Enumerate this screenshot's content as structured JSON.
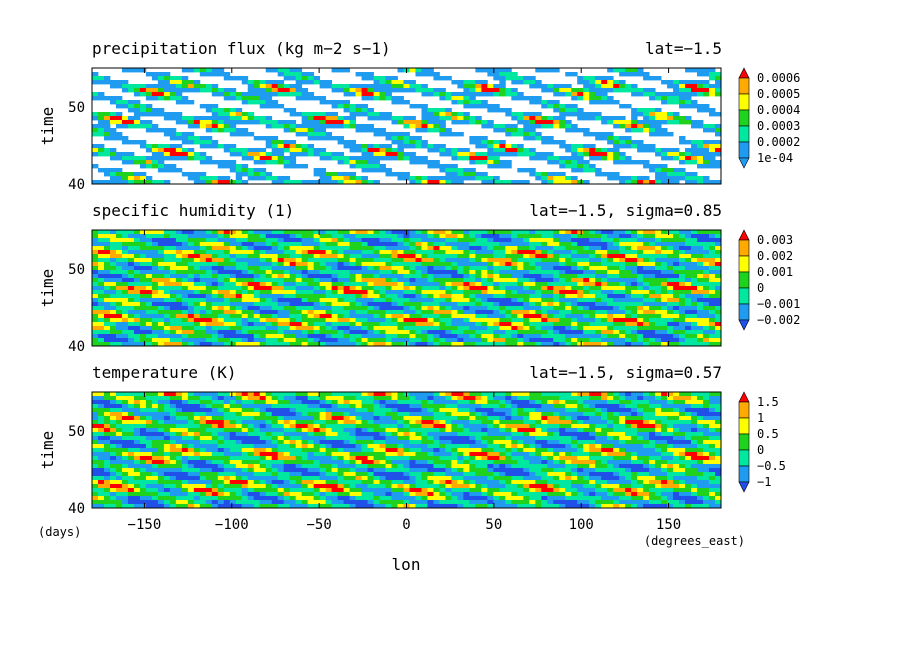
{
  "chart_data": [
    {
      "type": "heatmap",
      "title": "precipitation flux (kg m−2 s−1)",
      "subtitle": "lat=−1.5",
      "ylabel": "time",
      "ylim": [
        40,
        55
      ],
      "xlim": [
        -180,
        180
      ],
      "y_ticks": [
        "40",
        "50"
      ],
      "colorbar_labels": [
        "1e-04",
        "0.0002",
        "0.0003",
        "0.0004",
        "0.0005",
        "0.0006"
      ],
      "colors": [
        "#ffffff",
        "#1f9bf0",
        "#00e8a0",
        "#1ed21e",
        "#ffff00",
        "#ffaa00",
        "#ff0000"
      ],
      "pattern_band_slope": -0.07
    },
    {
      "type": "heatmap",
      "title": "specific humidity (1)",
      "subtitle": "lat=−1.5, sigma=0.85",
      "ylabel": "time",
      "ylim": [
        40,
        55
      ],
      "xlim": [
        -180,
        180
      ],
      "y_ticks": [
        "40",
        "50"
      ],
      "colorbar_labels": [
        "−0.002",
        "−0.001",
        "0",
        "0.001",
        "0.002",
        "0.003"
      ],
      "colors": [
        "#2050e8",
        "#1f9bf0",
        "#00e8a0",
        "#1ed21e",
        "#ffff00",
        "#ffaa00",
        "#ff0000"
      ],
      "pattern_band_slope": -0.06
    },
    {
      "type": "heatmap",
      "title": "temperature (K)",
      "subtitle": "lat=−1.5, sigma=0.57",
      "ylabel": "time",
      "ylim": [
        40,
        55
      ],
      "xlim": [
        -180,
        180
      ],
      "y_ticks": [
        "40",
        "50"
      ],
      "colorbar_labels": [
        "−1",
        "−0.5",
        "0",
        "0.5",
        "1",
        "1.5"
      ],
      "colors": [
        "#2050e8",
        "#1f9bf0",
        "#00e8a0",
        "#1ed21e",
        "#ffff00",
        "#ffaa00",
        "#ff0000"
      ],
      "pattern_band_slope": 0.02
    }
  ],
  "x_axis": {
    "label": "lon",
    "unit": "(degrees_east)",
    "ticks": [
      -150,
      -100,
      -50,
      0,
      50,
      100,
      150
    ]
  },
  "y_unit": "(days)"
}
